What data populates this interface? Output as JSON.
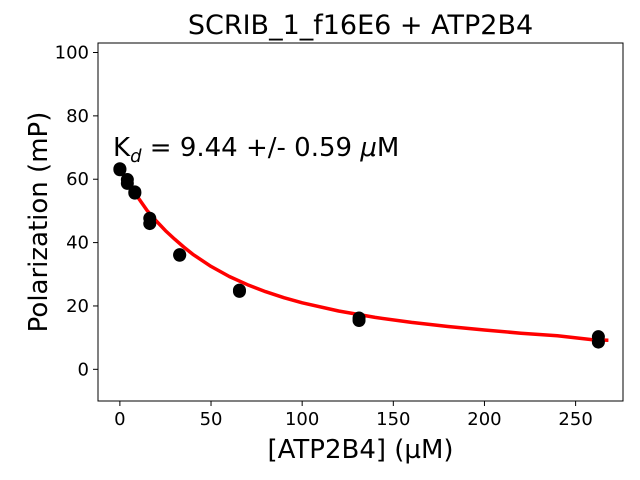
{
  "chart_data": {
    "type": "scatter",
    "title": "SCRIB_1_f16E6 + ATP2B4",
    "xlabel": "[ATP2B4] (µM)",
    "ylabel": "Polarization (mP)",
    "xlim": [
      -12,
      276
    ],
    "ylim": [
      -10,
      103
    ],
    "x_ticks": [
      0,
      50,
      100,
      150,
      200,
      250
    ],
    "y_ticks": [
      0,
      20,
      40,
      60,
      80,
      100
    ],
    "grid": false,
    "annotation": {
      "base": "K",
      "subscript": "d",
      "text": " = 9.44 +/- 0.59 ",
      "mu": "μ",
      "unit": "M"
    },
    "series": [
      {
        "kind": "points",
        "color": "#000000",
        "x": [
          0,
          0,
          4.1,
          4.1,
          8.2,
          8.2,
          16.4,
          16.4,
          32.8,
          32.8,
          65.6,
          65.6,
          131.2,
          131.2,
          262.5,
          262.5
        ],
        "y": [
          63.3,
          63.0,
          59.9,
          58.7,
          56.0,
          55.6,
          47.7,
          46.0,
          36.2,
          36.0,
          25.0,
          24.6,
          16.2,
          15.4,
          10.3,
          8.6
        ]
      },
      {
        "kind": "fit",
        "color": "#ff0000",
        "x": [
          0,
          5,
          10,
          15,
          20,
          25,
          30,
          35,
          40,
          50,
          60,
          70,
          80,
          90,
          100,
          120,
          140,
          160,
          180,
          200,
          220,
          240,
          260,
          268
        ],
        "y": [
          63.5,
          58.3,
          54.2,
          50.1,
          46.8,
          43.8,
          41.1,
          38.6,
          36.3,
          32.5,
          29.3,
          26.7,
          24.5,
          22.6,
          21.0,
          18.4,
          16.4,
          14.8,
          13.5,
          12.4,
          11.4,
          10.6,
          9.3,
          9.2
        ]
      }
    ]
  }
}
